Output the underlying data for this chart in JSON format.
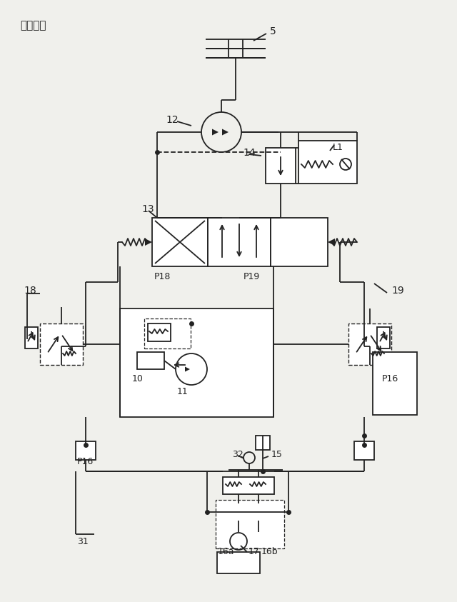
{
  "bg_color": "#f0f0ec",
  "line_color": "#222222",
  "labels": {
    "fig": "【図２】",
    "5": "5",
    "10": "10",
    "11": "11",
    "12": "12",
    "13": "13",
    "14": "14",
    "15": "15",
    "16a": "16a",
    "16b": "16b",
    "17": "17",
    "18": "18",
    "19": "19",
    "31": "31",
    "32": "32",
    "L1": "L1",
    "P16L": "P16",
    "P16R": "P16",
    "P18": "P18",
    "P19": "P19"
  }
}
